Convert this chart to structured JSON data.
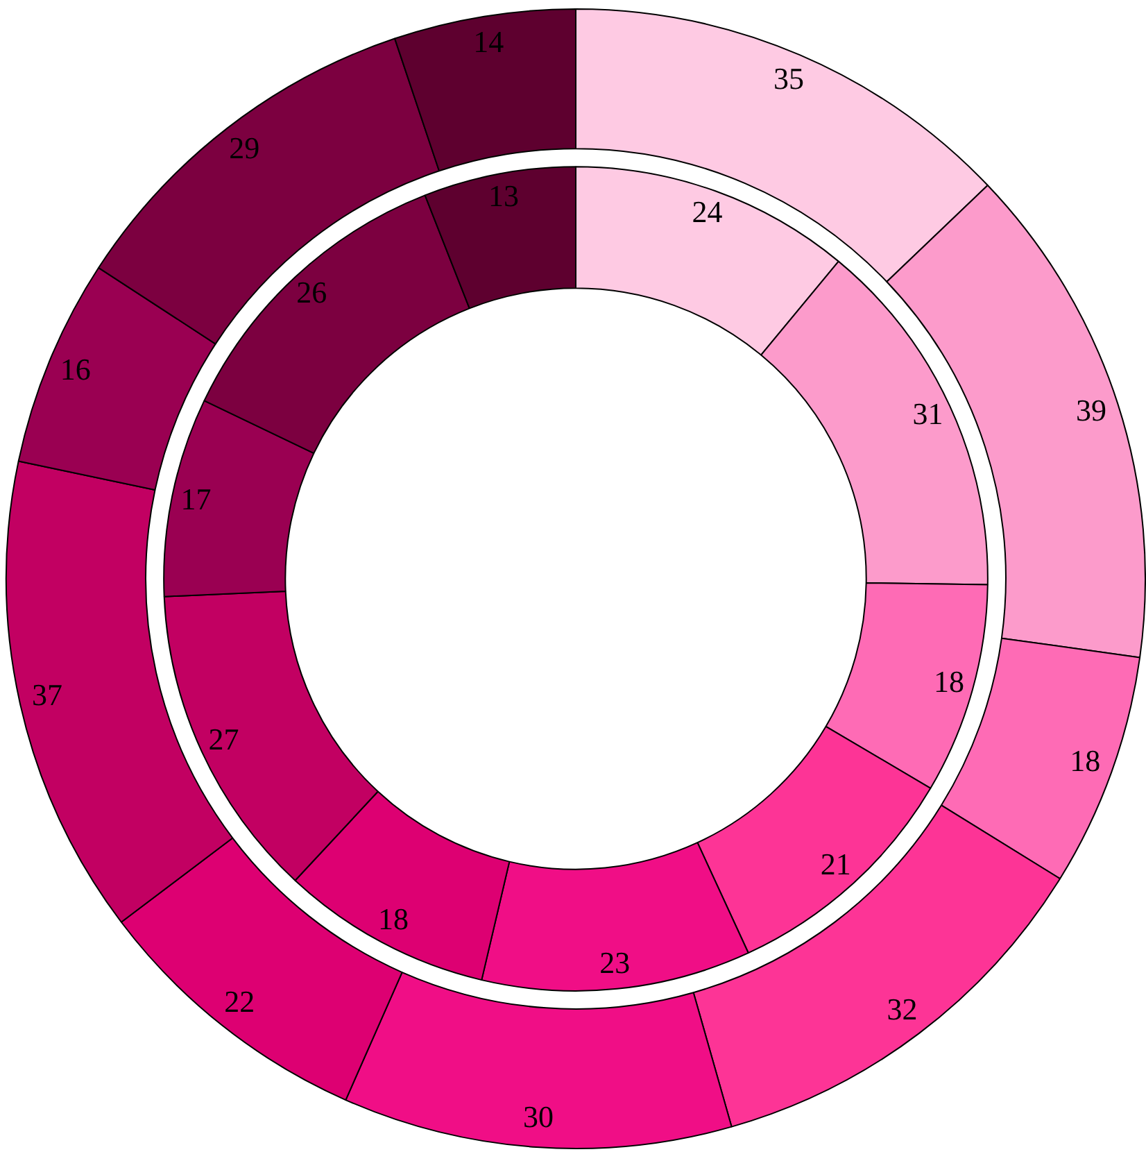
{
  "chart_data": {
    "type": "donut",
    "categories": [
      null,
      null,
      null,
      null,
      null,
      null,
      null,
      null,
      null,
      null
    ],
    "colors": [
      "#fecae3",
      "#fc9bcb",
      "#fe6bb5",
      "#fd3496",
      "#f00e86",
      "#dd0072",
      "#c20062",
      "#9a0052",
      "#7c0040",
      "#5e002f"
    ],
    "series": [
      {
        "values": [
          35,
          39,
          18,
          32,
          30,
          22,
          37,
          16,
          29,
          14
        ]
      },
      {
        "values": [
          24,
          31,
          18,
          21,
          23,
          18,
          27,
          17,
          26,
          13
        ]
      }
    ],
    "data_labels": true,
    "legend": false
  }
}
